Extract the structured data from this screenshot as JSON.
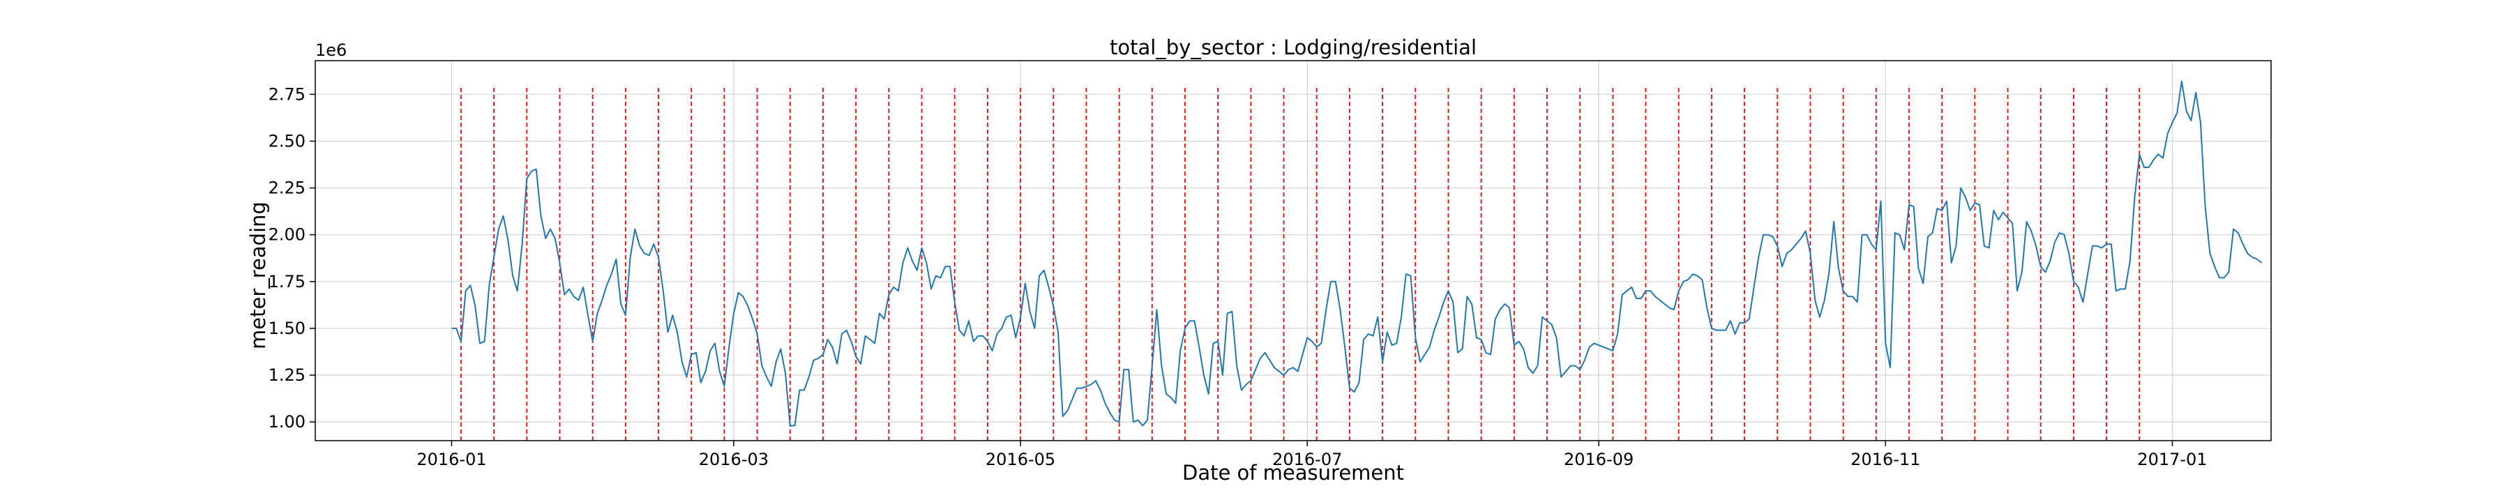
{
  "chart_data": {
    "type": "line",
    "title": "total_by_sector : Lodging/residential",
    "xlabel": "Date of measurement",
    "ylabel": "meter_reading",
    "y_offset_label": "1e6",
    "y_multiplier": 1000000,
    "xlim": [
      "2015-12-03",
      "2017-01-22"
    ],
    "ylim": [
      0.9,
      2.93
    ],
    "grid": true,
    "x_ticks": [
      "2016-01-01",
      "2016-03-01",
      "2016-05-01",
      "2016-07-01",
      "2016-09-01",
      "2016-11-01",
      "2017-01-01"
    ],
    "x_tick_labels": [
      "2016-01",
      "2016-03",
      "2016-05",
      "2016-07",
      "2016-09",
      "2016-11",
      "2017-01"
    ],
    "y_ticks": [
      1.0,
      1.25,
      1.5,
      1.75,
      2.0,
      2.25,
      2.5,
      2.75
    ],
    "y_tick_labels": [
      "1.00",
      "1.25",
      "1.50",
      "1.75",
      "2.00",
      "2.25",
      "2.50",
      "2.75"
    ],
    "line_color": "#1f77b4",
    "vline_color": "#ff0000",
    "vlines_y_range": [
      0.9,
      2.8
    ],
    "vlines": [
      "2016-01-03",
      "2016-01-10",
      "2016-01-17",
      "2016-01-24",
      "2016-01-31",
      "2016-02-07",
      "2016-02-14",
      "2016-02-21",
      "2016-02-28",
      "2016-03-06",
      "2016-03-13",
      "2016-03-20",
      "2016-03-27",
      "2016-04-03",
      "2016-04-10",
      "2016-04-17",
      "2016-04-24",
      "2016-05-01",
      "2016-05-08",
      "2016-05-15",
      "2016-05-22",
      "2016-05-29",
      "2016-06-05",
      "2016-06-12",
      "2016-06-19",
      "2016-06-26",
      "2016-07-03",
      "2016-07-10",
      "2016-07-17",
      "2016-07-24",
      "2016-07-31",
      "2016-08-07",
      "2016-08-14",
      "2016-08-21",
      "2016-08-28",
      "2016-09-04",
      "2016-09-11",
      "2016-09-18",
      "2016-09-25",
      "2016-10-02",
      "2016-10-09",
      "2016-10-16",
      "2016-10-23",
      "2016-10-30",
      "2016-11-06",
      "2016-11-13",
      "2016-11-20",
      "2016-11-27",
      "2016-12-04",
      "2016-12-11",
      "2016-12-18",
      "2016-12-25"
    ],
    "series": [
      {
        "start_date": "2016-01-01",
        "step_days": 1,
        "values": [
          1.5,
          1.5,
          1.43,
          1.7,
          1.73,
          1.62,
          1.42,
          1.43,
          1.73,
          1.88,
          2.03,
          2.1,
          1.97,
          1.78,
          1.7,
          1.95,
          2.3,
          2.34,
          2.35,
          2.1,
          1.98,
          2.03,
          1.98,
          1.85,
          1.68,
          1.71,
          1.67,
          1.65,
          1.72,
          1.57,
          1.43,
          1.58,
          1.65,
          1.73,
          1.79,
          1.87,
          1.63,
          1.57,
          1.88,
          2.03,
          1.94,
          1.9,
          1.89,
          1.95,
          1.88,
          1.7,
          1.48,
          1.57,
          1.48,
          1.32,
          1.24,
          1.36,
          1.37,
          1.21,
          1.27,
          1.38,
          1.42,
          1.27,
          1.19,
          1.4,
          1.58,
          1.69,
          1.67,
          1.62,
          1.55,
          1.47,
          1.3,
          1.24,
          1.19,
          1.32,
          1.39,
          1.26,
          0.98,
          0.98,
          1.17,
          1.17,
          1.24,
          1.33,
          1.34,
          1.36,
          1.44,
          1.4,
          1.31,
          1.47,
          1.49,
          1.43,
          1.35,
          1.31,
          1.46,
          1.44,
          1.42,
          1.58,
          1.55,
          1.68,
          1.72,
          1.7,
          1.85,
          1.93,
          1.86,
          1.81,
          1.93,
          1.85,
          1.71,
          1.78,
          1.77,
          1.83,
          1.83,
          1.64,
          1.49,
          1.46,
          1.54,
          1.43,
          1.46,
          1.46,
          1.43,
          1.38,
          1.47,
          1.5,
          1.56,
          1.57,
          1.45,
          1.56,
          1.74,
          1.59,
          1.5,
          1.78,
          1.81,
          1.72,
          1.62,
          1.48,
          1.03,
          1.06,
          1.12,
          1.18,
          1.18,
          1.19,
          1.2,
          1.22,
          1.17,
          1.1,
          1.05,
          1.01,
          1.0,
          1.28,
          1.28,
          1.0,
          1.01,
          0.98,
          1.01,
          1.3,
          1.6,
          1.3,
          1.15,
          1.13,
          1.1,
          1.38,
          1.5,
          1.54,
          1.54,
          1.4,
          1.25,
          1.15,
          1.42,
          1.43,
          1.25,
          1.58,
          1.59,
          1.3,
          1.17,
          1.2,
          1.22,
          1.28,
          1.34,
          1.37,
          1.33,
          1.29,
          1.27,
          1.25,
          1.28,
          1.29,
          1.27,
          1.36,
          1.45,
          1.43,
          1.4,
          1.42,
          1.6,
          1.75,
          1.75,
          1.6,
          1.4,
          1.18,
          1.16,
          1.21,
          1.44,
          1.47,
          1.46,
          1.56,
          1.32,
          1.48,
          1.41,
          1.42,
          1.56,
          1.79,
          1.78,
          1.45,
          1.32,
          1.36,
          1.4,
          1.49,
          1.56,
          1.64,
          1.7,
          1.64,
          1.37,
          1.39,
          1.67,
          1.63,
          1.45,
          1.44,
          1.37,
          1.36,
          1.55,
          1.6,
          1.63,
          1.61,
          1.41,
          1.43,
          1.39,
          1.29,
          1.26,
          1.3,
          1.56,
          1.54,
          1.52,
          1.45,
          1.24,
          1.27,
          1.3,
          1.3,
          1.28,
          1.33,
          1.4,
          1.42,
          1.41,
          1.4,
          1.39,
          1.38,
          1.47,
          1.68,
          1.7,
          1.72,
          1.66,
          1.66,
          1.7,
          1.7,
          1.67,
          1.65,
          1.63,
          1.61,
          1.6,
          1.7,
          1.75,
          1.76,
          1.79,
          1.78,
          1.76,
          1.61,
          1.5,
          1.49,
          1.49,
          1.49,
          1.54,
          1.47,
          1.53,
          1.53,
          1.55,
          1.72,
          1.88,
          2.0,
          2.0,
          1.99,
          1.94,
          1.83,
          1.9,
          1.92,
          1.95,
          1.98,
          2.02,
          1.9,
          1.65,
          1.56,
          1.65,
          1.8,
          2.07,
          1.82,
          1.7,
          1.67,
          1.67,
          1.64,
          2.0,
          2.0,
          1.95,
          1.92,
          2.18,
          1.42,
          1.29,
          2.01,
          2.0,
          1.92,
          2.16,
          2.15,
          1.82,
          1.74,
          1.99,
          2.01,
          2.14,
          2.13,
          2.18,
          1.85,
          1.94,
          2.25,
          2.2,
          2.13,
          2.17,
          2.16,
          1.94,
          1.93,
          2.13,
          2.08,
          2.12,
          2.09,
          2.06,
          1.7,
          1.8,
          2.07,
          2.02,
          1.94,
          1.83,
          1.8,
          1.86,
          1.96,
          2.01,
          2.0,
          1.9,
          1.75,
          1.72,
          1.64,
          1.79,
          1.94,
          1.94,
          1.93,
          1.95,
          1.95,
          1.7,
          1.71,
          1.71,
          1.86,
          2.2,
          2.43,
          2.36,
          2.36,
          2.4,
          2.43,
          2.41,
          2.54,
          2.6,
          2.65,
          2.82,
          2.66,
          2.61,
          2.76,
          2.6,
          2.15,
          1.9,
          1.83,
          1.77,
          1.77,
          1.8,
          2.03,
          2.01,
          1.95,
          1.9,
          1.88,
          1.87,
          1.85
        ]
      }
    ]
  }
}
